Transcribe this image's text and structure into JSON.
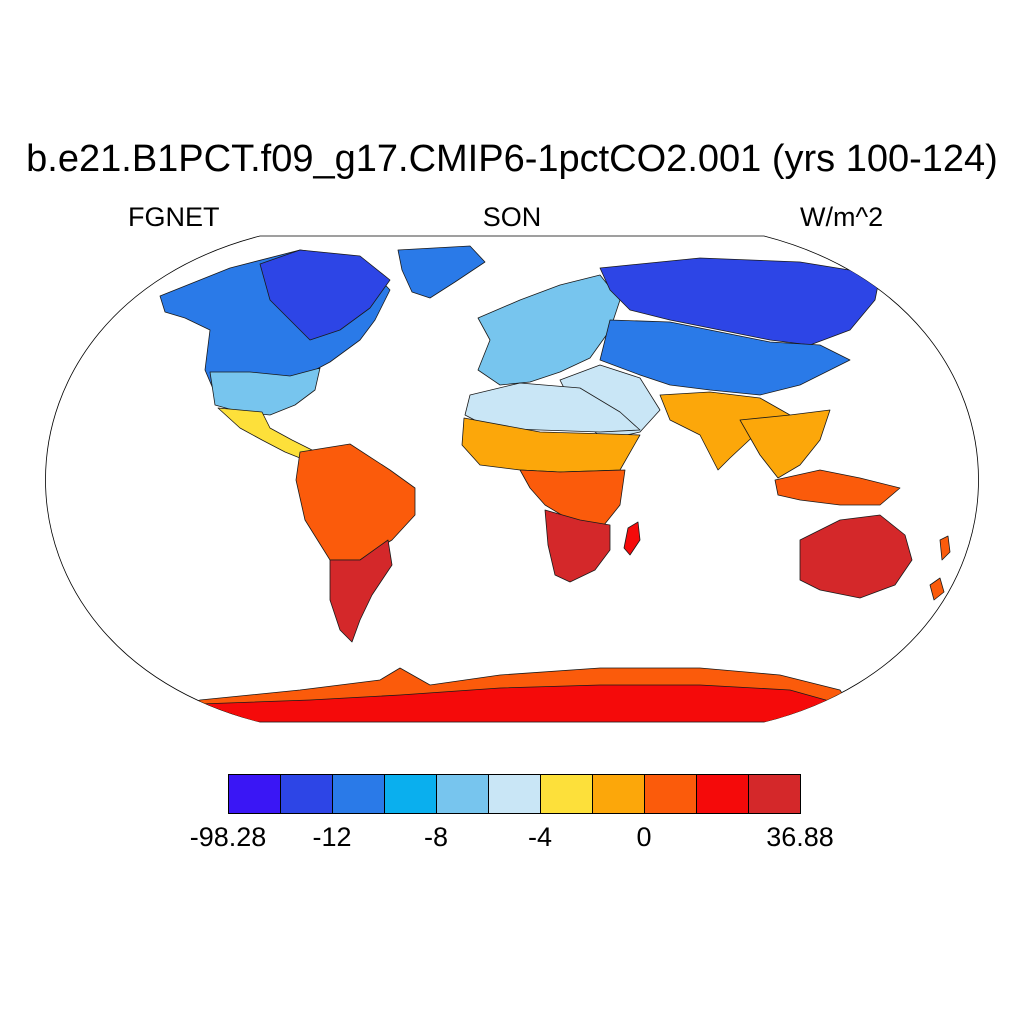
{
  "title": "b.e21.B1PCT.f09_g17.CMIP6-1pctCO2.001 (yrs 100-124)",
  "subtitle_left": "FGNET",
  "subtitle_center": "SON",
  "subtitle_right": "W/m^2",
  "projection": "Robinson",
  "colorbar": {
    "colors": [
      "#3a16f5",
      "#2d45e6",
      "#2a7ae8",
      "#0aafee",
      "#77c5ee",
      "#c9e6f6",
      "#fde03a",
      "#fca70a",
      "#fb5b0b",
      "#f50a0a",
      "#d4282a"
    ],
    "labels": [
      {
        "text": "-98.28",
        "boundary": 0
      },
      {
        "text": "-12",
        "boundary": 1
      },
      {
        "text": "-8",
        "boundary": 2
      },
      {
        "text": "-4",
        "boundary": 3
      },
      {
        "text": "0",
        "boundary": 4
      },
      {
        "text": "36.88",
        "boundary": 5.5
      }
    ]
  },
  "regions": [
    {
      "name": "north-america-north",
      "color": "#2d45e6"
    },
    {
      "name": "north-america-mid",
      "color": "#2a7ae8"
    },
    {
      "name": "north-america-south",
      "color": "#77c5ee"
    },
    {
      "name": "greenland",
      "color": "#2a7ae8"
    },
    {
      "name": "central-america",
      "color": "#fde03a"
    },
    {
      "name": "south-america-north",
      "color": "#fb5b0b"
    },
    {
      "name": "south-america-south",
      "color": "#d4282a"
    },
    {
      "name": "europe",
      "color": "#77c5ee"
    },
    {
      "name": "siberia",
      "color": "#2d45e6"
    },
    {
      "name": "central-asia",
      "color": "#2a7ae8"
    },
    {
      "name": "middle-east",
      "color": "#c9e6f6"
    },
    {
      "name": "south-asia",
      "color": "#fca70a"
    },
    {
      "name": "sahara",
      "color": "#c9e6f6"
    },
    {
      "name": "sahel",
      "color": "#fca70a"
    },
    {
      "name": "central-africa",
      "color": "#fb5b0b"
    },
    {
      "name": "southern-africa",
      "color": "#d4282a"
    },
    {
      "name": "madagascar",
      "color": "#f50a0a"
    },
    {
      "name": "southeast-asia",
      "color": "#fca70a"
    },
    {
      "name": "indonesia",
      "color": "#fb5b0b"
    },
    {
      "name": "australia",
      "color": "#d4282a"
    },
    {
      "name": "new-zealand",
      "color": "#fb5b0b"
    },
    {
      "name": "antarctica-coast",
      "color": "#fb5b0b"
    },
    {
      "name": "antarctica-interior",
      "color": "#f50a0a"
    }
  ]
}
